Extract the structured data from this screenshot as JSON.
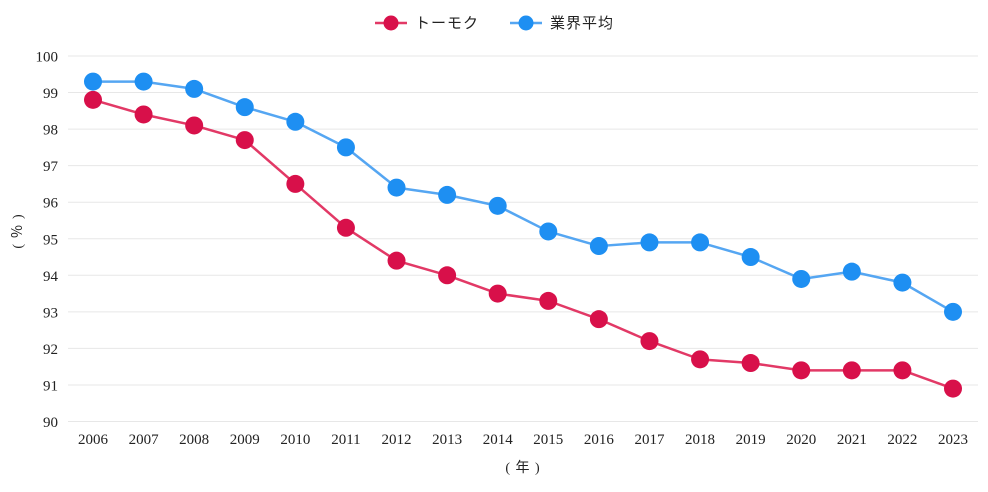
{
  "colors": {
    "background": "#ffffff",
    "grid": "#e7e7e7",
    "text": "#222222"
  },
  "chart_data": {
    "type": "line",
    "title": "",
    "xlabel": "( 年 )",
    "ylabel": "( ％ )",
    "ylim": [
      90,
      100
    ],
    "y_ticks": [
      90,
      91,
      92,
      93,
      94,
      95,
      96,
      97,
      98,
      99,
      100
    ],
    "grid": "horizontal-only",
    "legend_position": "top-center",
    "x_categories": [
      "2006",
      "2007",
      "2008",
      "2009",
      "2010",
      "2011",
      "2012",
      "2013",
      "2014",
      "2015",
      "2016",
      "2017",
      "2018",
      "2019",
      "2020",
      "2021",
      "2022",
      "2023"
    ],
    "series": [
      {
        "id": "tomoku",
        "name": "トーモク",
        "color": "#d8104a",
        "line_color": "#e23966",
        "values": [
          98.8,
          98.4,
          98.1,
          97.7,
          96.5,
          95.3,
          94.4,
          94.0,
          93.5,
          93.3,
          92.8,
          92.2,
          91.7,
          91.6,
          91.4,
          91.4,
          91.4,
          90.9
        ]
      },
      {
        "id": "industry-average",
        "name": "業界平均",
        "color": "#1e8ff2",
        "line_color": "#55a6f2",
        "values": [
          99.3,
          99.3,
          99.1,
          98.6,
          98.2,
          97.5,
          96.4,
          96.2,
          95.9,
          95.2,
          94.8,
          94.9,
          94.9,
          94.5,
          93.9,
          94.1,
          93.8,
          93.0
        ]
      }
    ]
  }
}
